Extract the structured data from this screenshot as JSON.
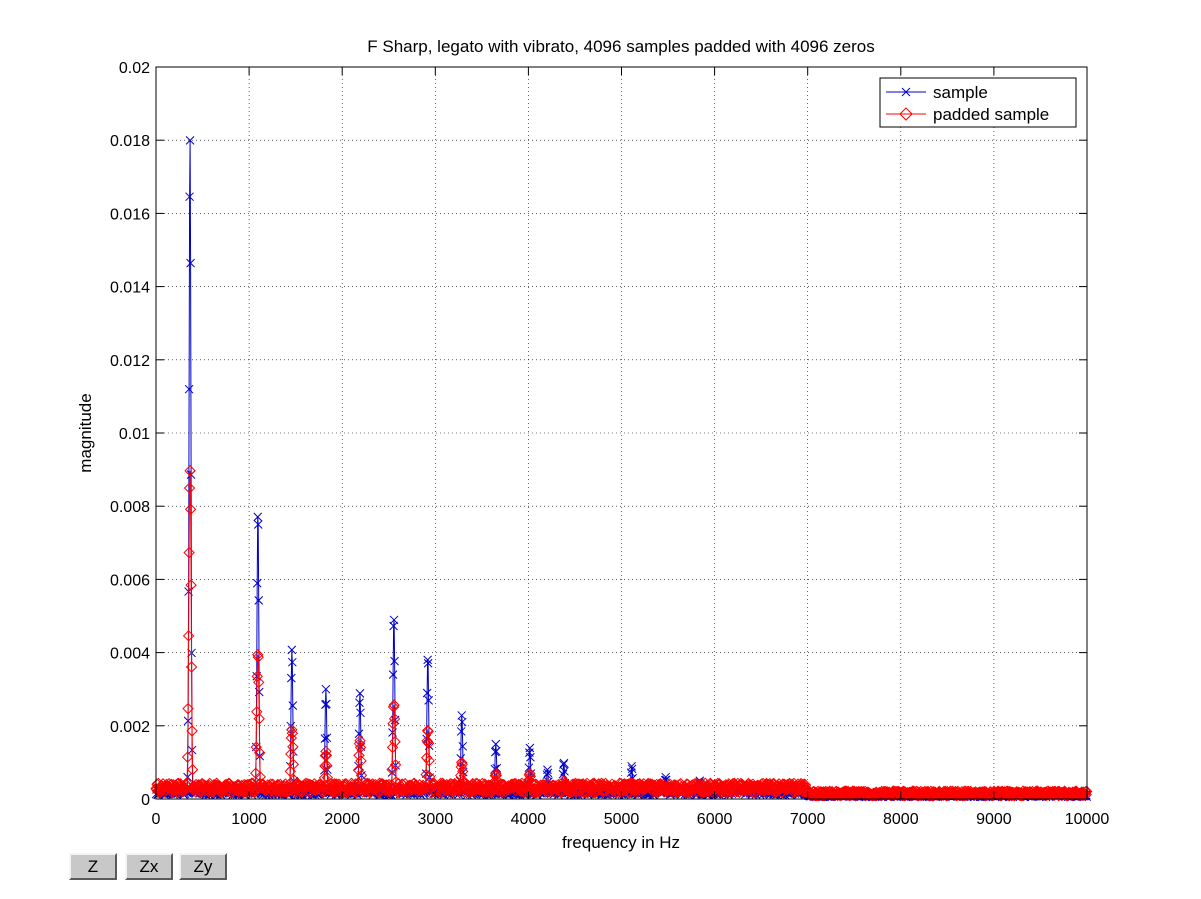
{
  "chart_data": {
    "type": "line",
    "title": "F Sharp, legato with vibrato, 4096 samples padded with 4096 zeros",
    "xlabel": "frequency in Hz",
    "ylabel": "magnitude",
    "xlim": [
      0,
      10000
    ],
    "ylim": [
      0,
      0.02
    ],
    "x_ticks": [
      0,
      1000,
      2000,
      3000,
      4000,
      5000,
      6000,
      7000,
      8000,
      9000,
      10000
    ],
    "y_ticks": [
      0,
      0.002,
      0.004,
      0.006,
      0.008,
      0.01,
      0.012,
      0.014,
      0.016,
      0.018,
      0.02
    ],
    "x_tick_labels": [
      "0",
      "1000",
      "2000",
      "3000",
      "4000",
      "5000",
      "6000",
      "7000",
      "8000",
      "9000",
      "10000"
    ],
    "y_tick_labels": [
      "0",
      "0.002",
      "0.004",
      "0.006",
      "0.008",
      "0.01",
      "0.012",
      "0.014",
      "0.016",
      "0.018",
      "0.02"
    ],
    "grid": true,
    "legend_position": "top-right",
    "series": [
      {
        "name": "sample",
        "color": "#0000cc",
        "marker": "x",
        "peaks": [
          {
            "x": 365,
            "y": 0.0181
          },
          {
            "x": 1095,
            "y": 0.0079
          },
          {
            "x": 1460,
            "y": 0.0041
          },
          {
            "x": 1825,
            "y": 0.003
          },
          {
            "x": 2190,
            "y": 0.0029
          },
          {
            "x": 2555,
            "y": 0.005
          },
          {
            "x": 2920,
            "y": 0.0039
          },
          {
            "x": 3285,
            "y": 0.0023
          },
          {
            "x": 3650,
            "y": 0.0015
          },
          {
            "x": 4015,
            "y": 0.0014
          },
          {
            "x": 4205,
            "y": 0.0008
          },
          {
            "x": 4380,
            "y": 0.001
          },
          {
            "x": 5110,
            "y": 0.0009
          },
          {
            "x": 5475,
            "y": 0.0006
          },
          {
            "x": 5840,
            "y": 0.0005
          },
          {
            "x": 6205,
            "y": 0.0002
          },
          {
            "x": 7300,
            "y": 0.0002
          }
        ]
      },
      {
        "name": "padded sample",
        "color": "#ff0000",
        "marker": "diamond",
        "peaks": [
          {
            "x": 365,
            "y": 0.009
          },
          {
            "x": 1095,
            "y": 0.004
          },
          {
            "x": 1460,
            "y": 0.0019
          },
          {
            "x": 1825,
            "y": 0.0013
          },
          {
            "x": 2190,
            "y": 0.0016
          },
          {
            "x": 2555,
            "y": 0.0026
          },
          {
            "x": 2920,
            "y": 0.0019
          },
          {
            "x": 3285,
            "y": 0.001
          },
          {
            "x": 3650,
            "y": 0.0007
          },
          {
            "x": 4015,
            "y": 0.0007
          },
          {
            "x": 4380,
            "y": 0.0005
          },
          {
            "x": 5110,
            "y": 0.0004
          },
          {
            "x": 5475,
            "y": 0.0003
          },
          {
            "x": 5840,
            "y": 0.0003
          }
        ]
      }
    ]
  },
  "zoom_buttons": {
    "z": "Z",
    "zx": "Zx",
    "zy": "Zy"
  }
}
